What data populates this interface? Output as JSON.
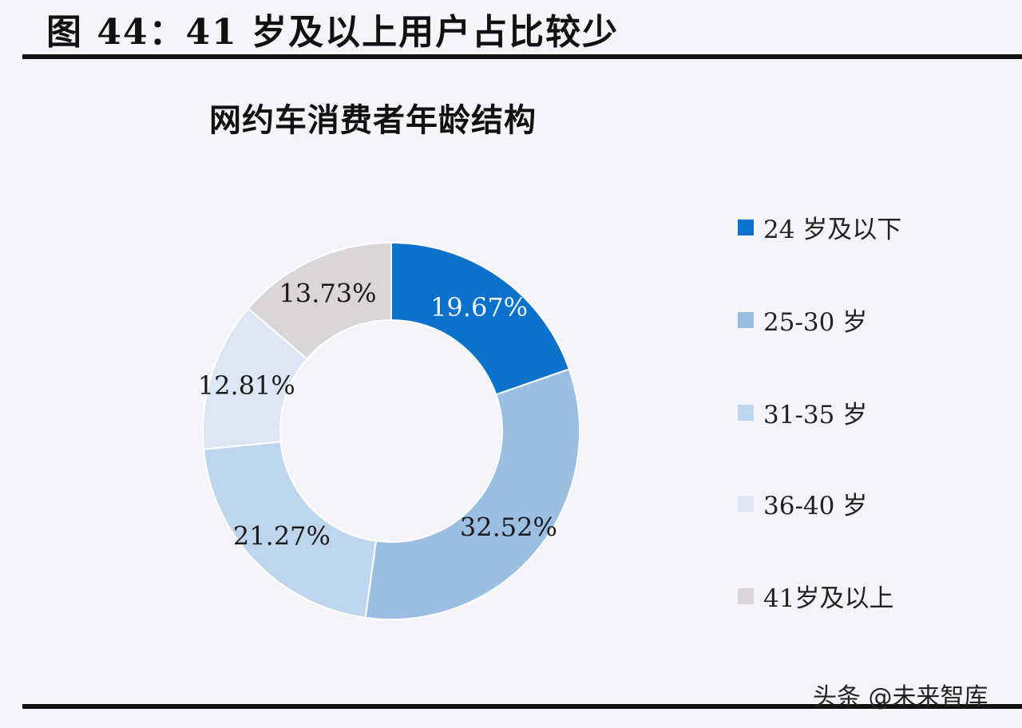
{
  "figure_title": "图 44：41 岁及以上用户占比较少",
  "watermark": "头条 @未来智库",
  "chart_data": {
    "type": "pie",
    "variant": "donut",
    "title": "网约车消费者年龄结构",
    "legend_position": "right",
    "categories": [
      "24岁及以下",
      "25-30岁",
      "31-35岁",
      "36-40岁",
      "41岁及以上"
    ],
    "values": [
      19.67,
      32.52,
      21.27,
      12.81,
      13.73
    ],
    "data_labels": [
      "19.67%",
      "32.52%",
      "21.27%",
      "12.81%",
      "13.73%"
    ],
    "legend_labels": [
      "24 岁及以下",
      "25-30 岁",
      "31-35 岁",
      "36-40 岁",
      "41岁及以上"
    ],
    "colors": [
      "#0b72cc",
      "#9bbfe3",
      "#bed5ee",
      "#dce7f6",
      "#d9d5d9"
    ],
    "label_colors": [
      "#f2f6fb",
      "#1a1a1a",
      "#1a1a1a",
      "#1a1a1a",
      "#1a1a1a"
    ]
  }
}
